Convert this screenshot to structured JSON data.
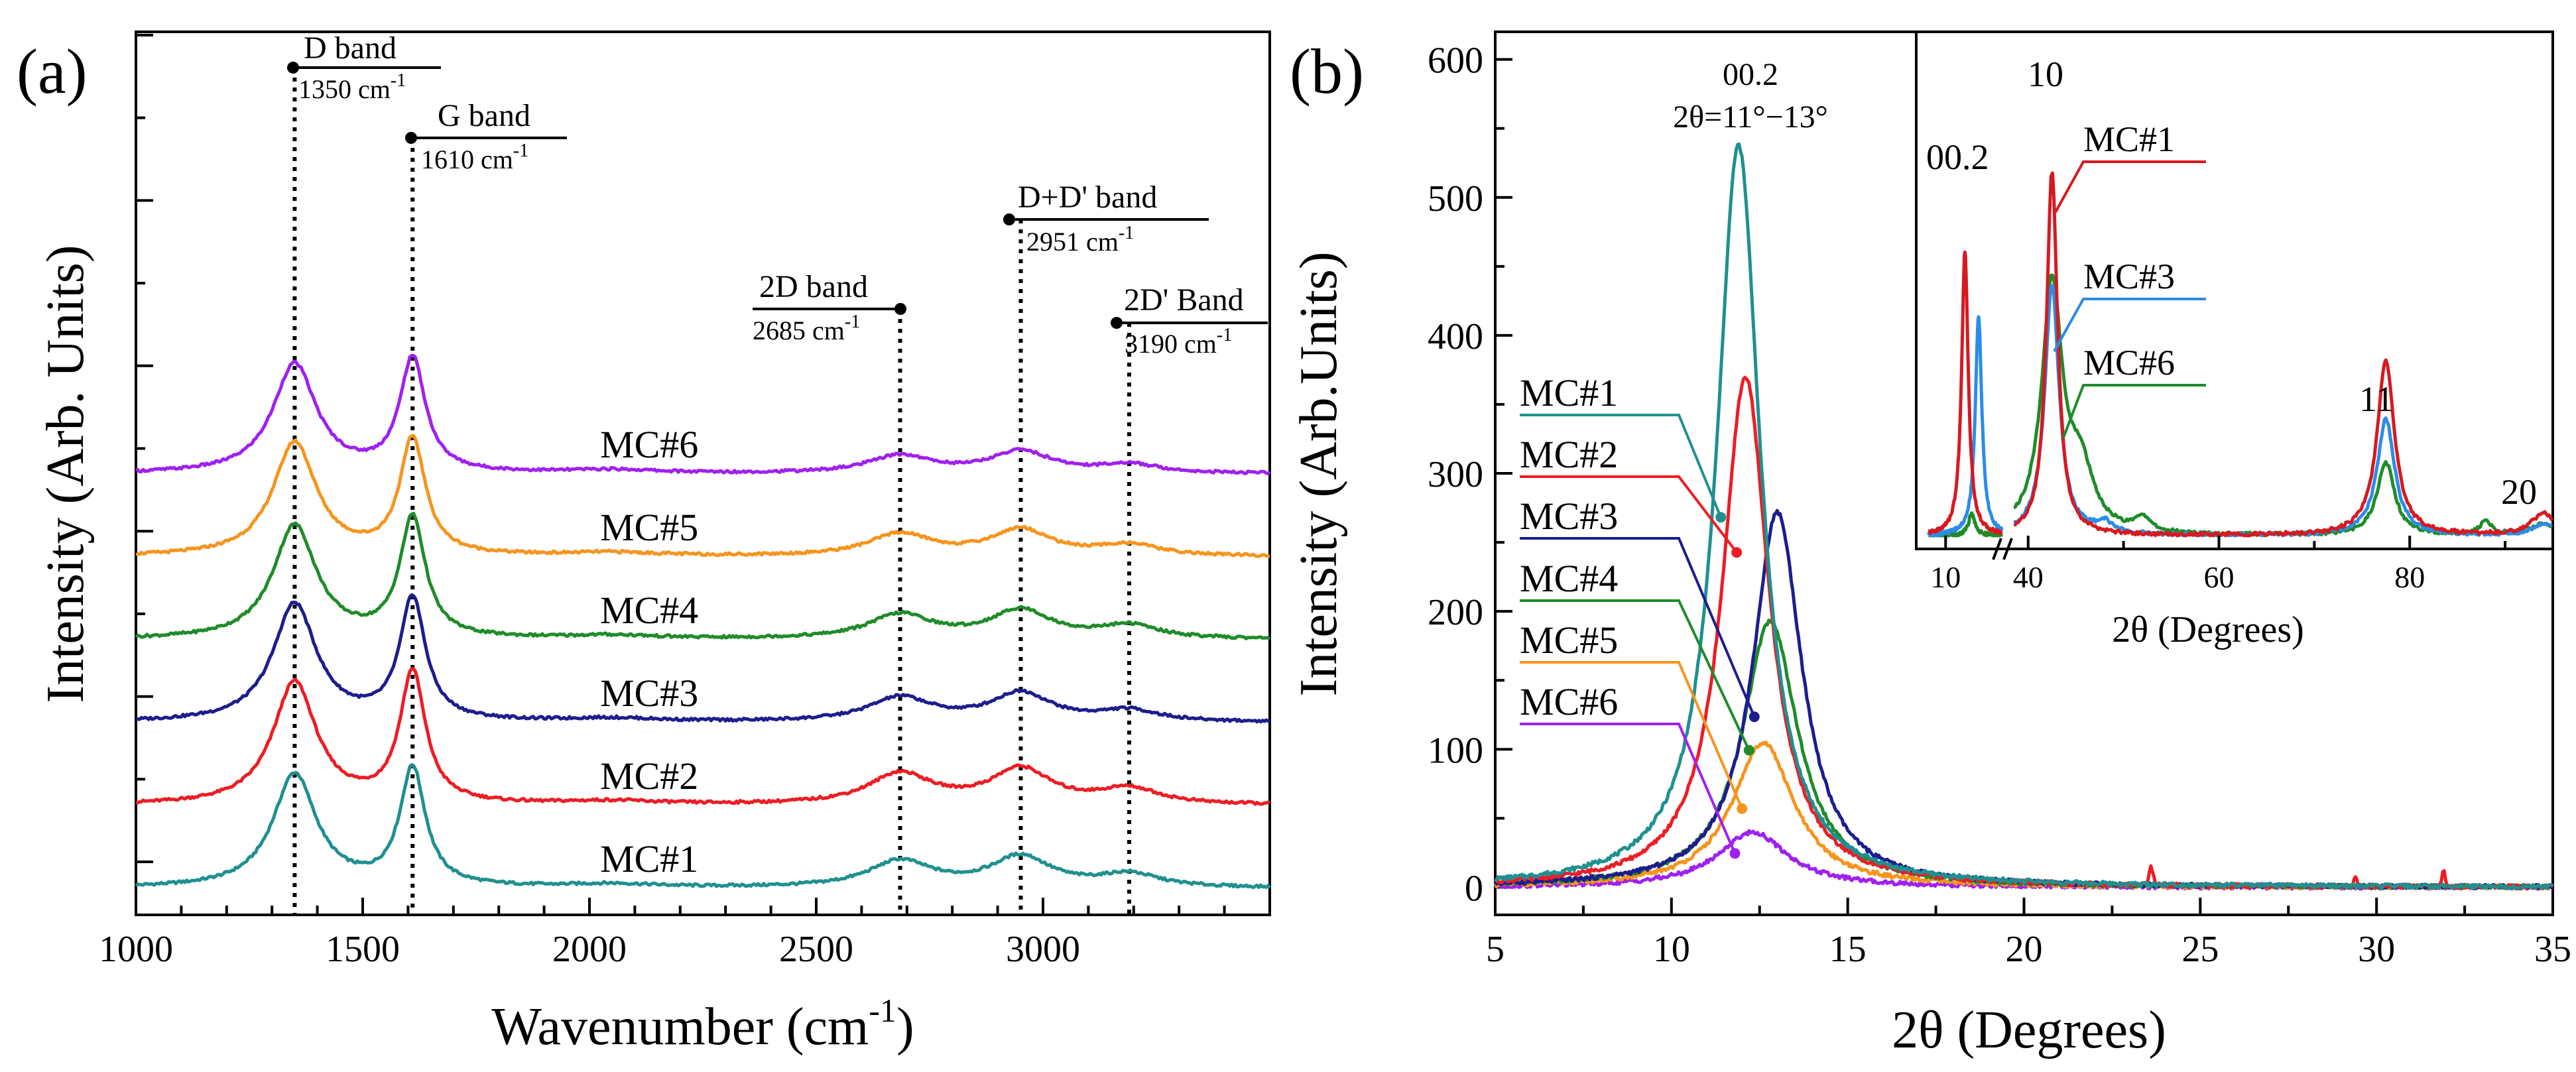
{
  "chart_data": [
    {
      "type": "line",
      "panel_label": "(a)",
      "title": "",
      "xlabel_base": "Wavenumber (cm",
      "xlabel_sup": "-1",
      "xlabel_end": ")",
      "ylabel": "Intensity (Arb. Units)",
      "xlim": [
        1000,
        3500
      ],
      "x_ticks": [
        "1000",
        "1500",
        "2000",
        "2500",
        "3000"
      ],
      "series": [
        {
          "name": "MC#1",
          "color": "#1f9090",
          "offset": 0,
          "D": 0.52,
          "G": 0.54,
          "D2": 0.12,
          "DD": 0.14,
          "D2p": 0.06
        },
        {
          "name": "MC#2",
          "color": "#ee1c24",
          "offset": 1,
          "D": 0.56,
          "G": 0.6,
          "D2": 0.14,
          "DD": 0.16,
          "D2p": 0.07
        },
        {
          "name": "MC#3",
          "color": "#1d1d8e",
          "offset": 2,
          "D": 0.54,
          "G": 0.56,
          "D2": 0.11,
          "DD": 0.13,
          "D2p": 0.05
        },
        {
          "name": "MC#4",
          "color": "#1f8c2a",
          "offset": 3,
          "D": 0.52,
          "G": 0.55,
          "D2": 0.11,
          "DD": 0.13,
          "D2p": 0.06
        },
        {
          "name": "MC#5",
          "color": "#f7941d",
          "offset": 4,
          "D": 0.52,
          "G": 0.53,
          "D2": 0.1,
          "DD": 0.12,
          "D2p": 0.05
        },
        {
          "name": "MC#6",
          "color": "#a020f0",
          "offset": 5,
          "D": 0.5,
          "G": 0.52,
          "D2": 0.08,
          "DD": 0.1,
          "D2p": 0.04
        }
      ],
      "bands": [
        {
          "name": "D band",
          "position": 1350,
          "value_text": "1350 cm",
          "sup": "-1"
        },
        {
          "name": "G band",
          "position": 1610,
          "value_text": "1610 cm",
          "sup": "-1"
        },
        {
          "name": "2D band",
          "position": 2685,
          "value_text": "2685 cm",
          "sup": "-1"
        },
        {
          "name": "D+D' band",
          "position": 2951,
          "value_text": "2951 cm",
          "sup": "-1"
        },
        {
          "name": "2D' Band",
          "position": 3190,
          "value_text": "3190 cm",
          "sup": "-1"
        }
      ]
    },
    {
      "type": "line",
      "panel_label": "(b)",
      "title": "",
      "xlabel": "2θ (Degrees)",
      "ylabel": "Intensity (Arb.Units)",
      "xlim": [
        5,
        35
      ],
      "ylim": [
        -20,
        620
      ],
      "x_ticks": [
        5,
        10,
        15,
        20,
        25,
        30,
        35
      ],
      "y_ticks": [
        0,
        100,
        200,
        300,
        400,
        500,
        600
      ],
      "peak_annotation": {
        "label": "00.2",
        "range": "2θ=11°−13°"
      },
      "series": [
        {
          "name": "MC#1",
          "color": "#1f9090",
          "peak_center": 11.9,
          "peak_height": 538
        },
        {
          "name": "MC#2",
          "color": "#ee1c24",
          "peak_center": 12.1,
          "peak_height": 370
        },
        {
          "name": "MC#3",
          "color": "#1d1d8e",
          "peak_center": 13.0,
          "peak_height": 272
        },
        {
          "name": "MC#4",
          "color": "#1f8c2a",
          "peak_center": 12.8,
          "peak_height": 193
        },
        {
          "name": "MC#5",
          "color": "#f7941d",
          "peak_center": 12.6,
          "peak_height": 105
        },
        {
          "name": "MC#6",
          "color": "#a020f0",
          "peak_center": 12.3,
          "peak_height": 40
        }
      ],
      "inset": {
        "xlabel": "2θ (Degrees)",
        "x_ticks": [
          "10",
          "40",
          "60",
          "80"
        ],
        "peak_labels": [
          "00.2",
          "10",
          "11",
          "20"
        ],
        "series": [
          {
            "name": "MC#1",
            "color": "#d71920"
          },
          {
            "name": "MC#3",
            "color": "#2b8ce8"
          },
          {
            "name": "MC#6",
            "color": "#1f8c2a"
          }
        ]
      }
    }
  ]
}
